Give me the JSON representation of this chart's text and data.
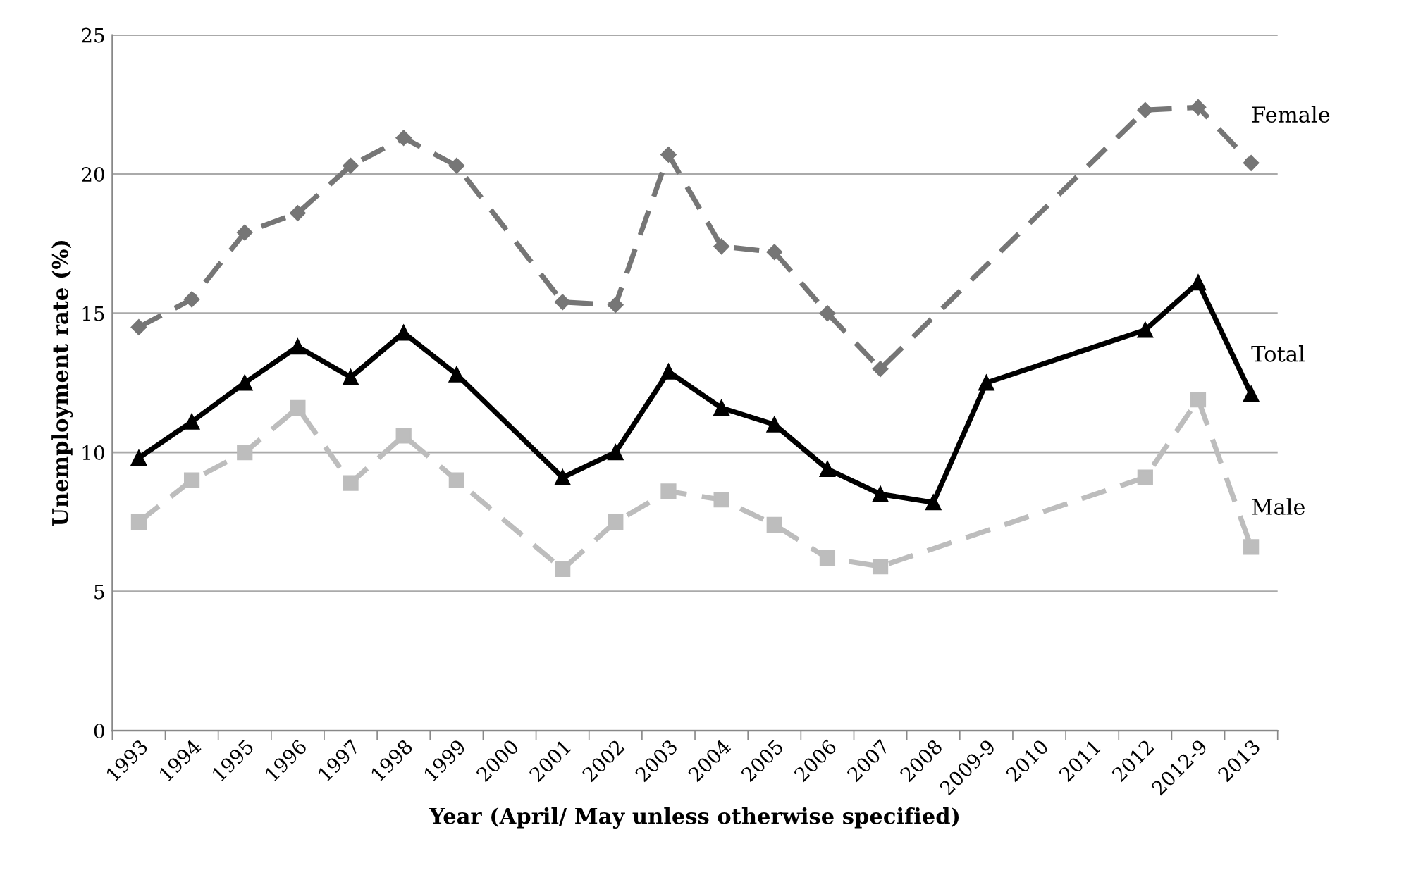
{
  "chart_data": {
    "type": "line",
    "xlabel": "Year (April/ May unless otherwise specified)",
    "ylabel": "Unemployment rate (%)",
    "categories": [
      "1993",
      "1994",
      "1995",
      "1996",
      "1997",
      "1998",
      "1999",
      "2000",
      "2001",
      "2002",
      "2003",
      "2004",
      "2005",
      "2006",
      "2007",
      "2008",
      "2009-9",
      "2010",
      "2011",
      "2012",
      "2012-9",
      "2013"
    ],
    "series": [
      {
        "name": "Female",
        "color": "#767676",
        "marker": "diamond",
        "line_style": "dashed",
        "values": [
          14.5,
          15.5,
          17.9,
          18.6,
          20.3,
          21.3,
          20.3,
          null,
          15.4,
          15.3,
          20.7,
          17.4,
          17.2,
          15.0,
          13.0,
          null,
          null,
          null,
          null,
          22.3,
          22.4,
          20.4
        ]
      },
      {
        "name": "Total",
        "color": "#000000",
        "marker": "triangle",
        "line_style": "solid",
        "values": [
          9.8,
          11.1,
          12.5,
          13.8,
          12.7,
          14.3,
          12.8,
          null,
          9.1,
          10.0,
          12.9,
          11.6,
          11.0,
          9.4,
          8.5,
          8.2,
          12.5,
          null,
          null,
          14.4,
          16.1,
          12.1
        ]
      },
      {
        "name": "Male",
        "color": "#bdbdbd",
        "marker": "square",
        "line_style": "dashed",
        "values": [
          7.5,
          9.0,
          10.0,
          11.6,
          8.9,
          10.6,
          9.0,
          null,
          5.8,
          7.5,
          8.6,
          8.3,
          7.4,
          6.2,
          5.9,
          null,
          null,
          null,
          null,
          9.1,
          11.9,
          6.6
        ]
      }
    ],
    "ylim": [
      0,
      25
    ],
    "yticks": [
      0,
      5,
      10,
      15,
      20,
      25
    ],
    "grid": "y",
    "legend": false
  }
}
